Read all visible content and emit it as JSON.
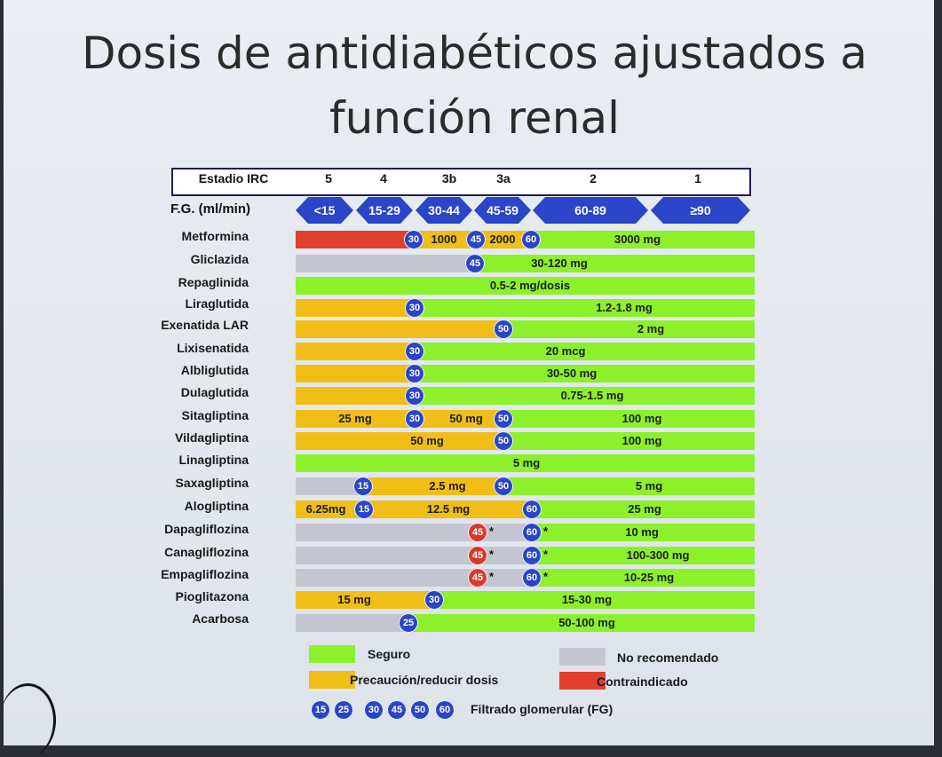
{
  "title": {
    "line1": "Dosis de antidiabéticos ajustados a",
    "line2": "función renal"
  },
  "stage_header": {
    "label": "Estadio IRC",
    "stages": [
      "5",
      "4",
      "3b",
      "3a",
      "2",
      "1"
    ]
  },
  "fg": {
    "label": "F.G. (ml/min)",
    "ranges": [
      "<15",
      "15-29",
      "30-44",
      "45-59",
      "60-89",
      "≥90"
    ]
  },
  "drugs": [
    "Metformina",
    "Gliclazida",
    "Repaglinida",
    "Liraglutida",
    "Exenatida LAR",
    "Lixisenatida",
    "Albliglutida",
    "Dulaglutida",
    "Sitagliptina",
    "Vildagliptina",
    "Linagliptina",
    "Saxagliptina",
    "Alogliptina",
    "Dapagliflozina",
    "Canagliflozina",
    "Empagliflozina",
    "Pioglitazona",
    "Acarbosa"
  ],
  "row_text": {
    "metformina": [
      "1000",
      "2000",
      "3000 mg"
    ],
    "gliclazida": "30-120 mg",
    "repaglinida": "0.5-2 mg/dosis",
    "liraglutida": "1.2-1.8 mg",
    "exenatida": "2 mg",
    "lixisenatida": "20 mcg",
    "albliglutida": "30-50 mg",
    "dulaglutida": "0.75-1.5 mg",
    "sitagliptina": [
      "25 mg",
      "50 mg",
      "100 mg"
    ],
    "vildagliptina": [
      "50 mg",
      "100 mg"
    ],
    "linagliptina": "5 mg",
    "saxagliptina": [
      "2.5 mg",
      "5 mg"
    ],
    "alogliptina": [
      "6.25mg",
      "12.5 mg",
      "25 mg"
    ],
    "dapagliflozina": "10 mg",
    "canagliflozina": "100-300 mg",
    "empagliflozina": "10-25 mg",
    "pioglitazona": [
      "15 mg",
      "15-30 mg"
    ],
    "acarbosa": "50-100 mg"
  },
  "fg_markers": [
    "15",
    "25",
    "30",
    "45",
    "50",
    "60"
  ],
  "star": "*",
  "legend": {
    "seguro": "Seguro",
    "precaucion": "Precaución/reducir dosis",
    "no_recomendado": "No recomendado",
    "contraindicado": "Contraindicado",
    "fg": "Filtrado glomerular (FG)"
  },
  "colors": {
    "safe": "#8cf02b",
    "caution": "#f0be16",
    "not_recommended": "#c3c5d0",
    "contraindicated": "#e0402f",
    "marker": "#2a45c7"
  }
}
